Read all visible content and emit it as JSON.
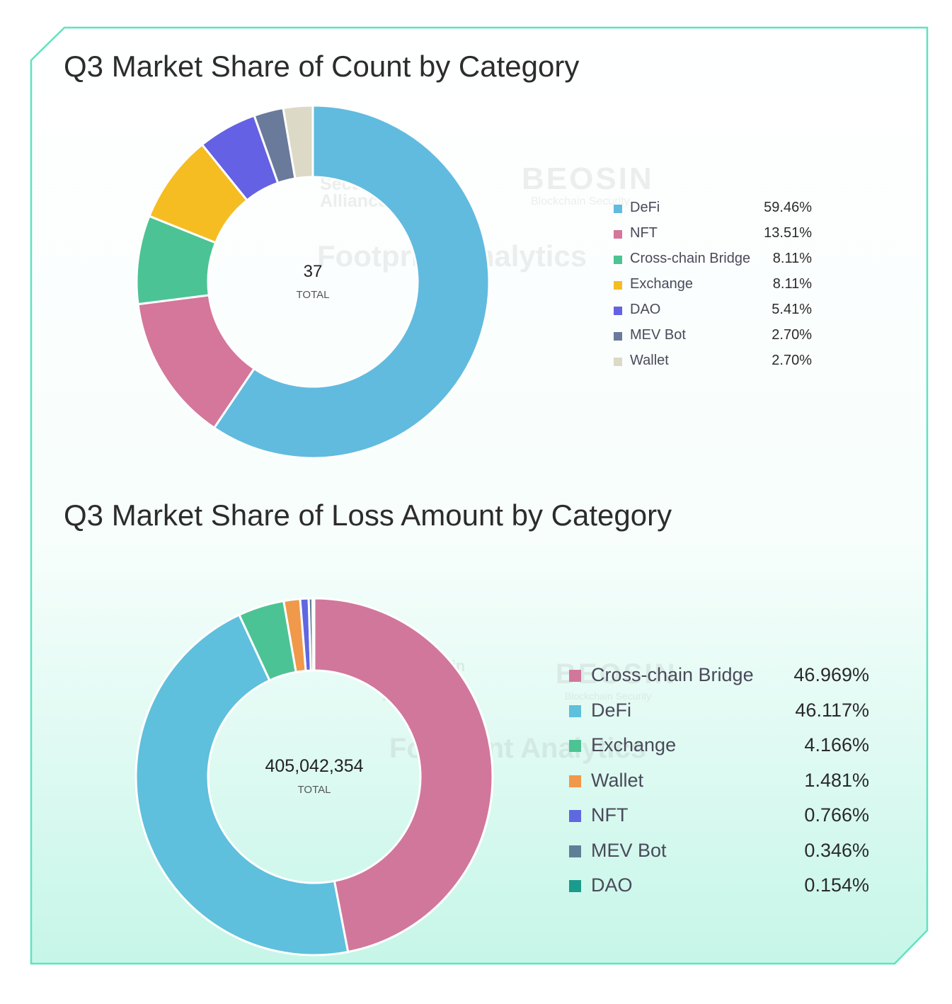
{
  "colors": {
    "frame": "#5fe3c0",
    "bg_bottom": "#c9f7ea"
  },
  "watermarks": {
    "alliance": "Blockchain Security Alliance",
    "beosin": "BEOSIN",
    "beosin_sub": "Blockchain Security",
    "footprint": "Footprint Analytics"
  },
  "chart_data": [
    {
      "type": "pie",
      "variant": "donut",
      "title": "Q3 Market Share of Count by Category",
      "center_value": "37",
      "center_label": "TOTAL",
      "legend_position": "right",
      "categories": [
        "DeFi",
        "NFT",
        "Cross-chain Bridge",
        "Exchange",
        "DAO",
        "MEV Bot",
        "Wallet"
      ],
      "values": [
        59.46,
        13.51,
        8.11,
        8.11,
        5.41,
        2.7,
        2.7
      ],
      "labels": [
        "59.46%",
        "13.51%",
        "8.11%",
        "8.11%",
        "5.41%",
        "2.70%",
        "2.70%"
      ],
      "colors": [
        "#61bbde",
        "#d5769b",
        "#4cc395",
        "#f5bd22",
        "#6461e4",
        "#6a7a9a",
        "#dcdac6"
      ]
    },
    {
      "type": "pie",
      "variant": "donut",
      "title": "Q3 Market Share of Loss Amount by Category",
      "center_value": "405,042,354",
      "center_label": "TOTAL",
      "legend_position": "right",
      "categories": [
        "Cross-chain Bridge",
        "DeFi",
        "Exchange",
        "Wallet",
        "NFT",
        "MEV Bot",
        "DAO"
      ],
      "values": [
        46.969,
        46.117,
        4.166,
        1.481,
        0.766,
        0.346,
        0.154
      ],
      "labels": [
        "46.969%",
        "46.117%",
        "4.166%",
        "1.481%",
        "0.766%",
        "0.346%",
        "0.154%"
      ],
      "colors": [
        "#d1779c",
        "#5ec0dc",
        "#4cc395",
        "#f0994a",
        "#5f68e0",
        "#5f7f99",
        "#1a9b8c"
      ]
    }
  ]
}
